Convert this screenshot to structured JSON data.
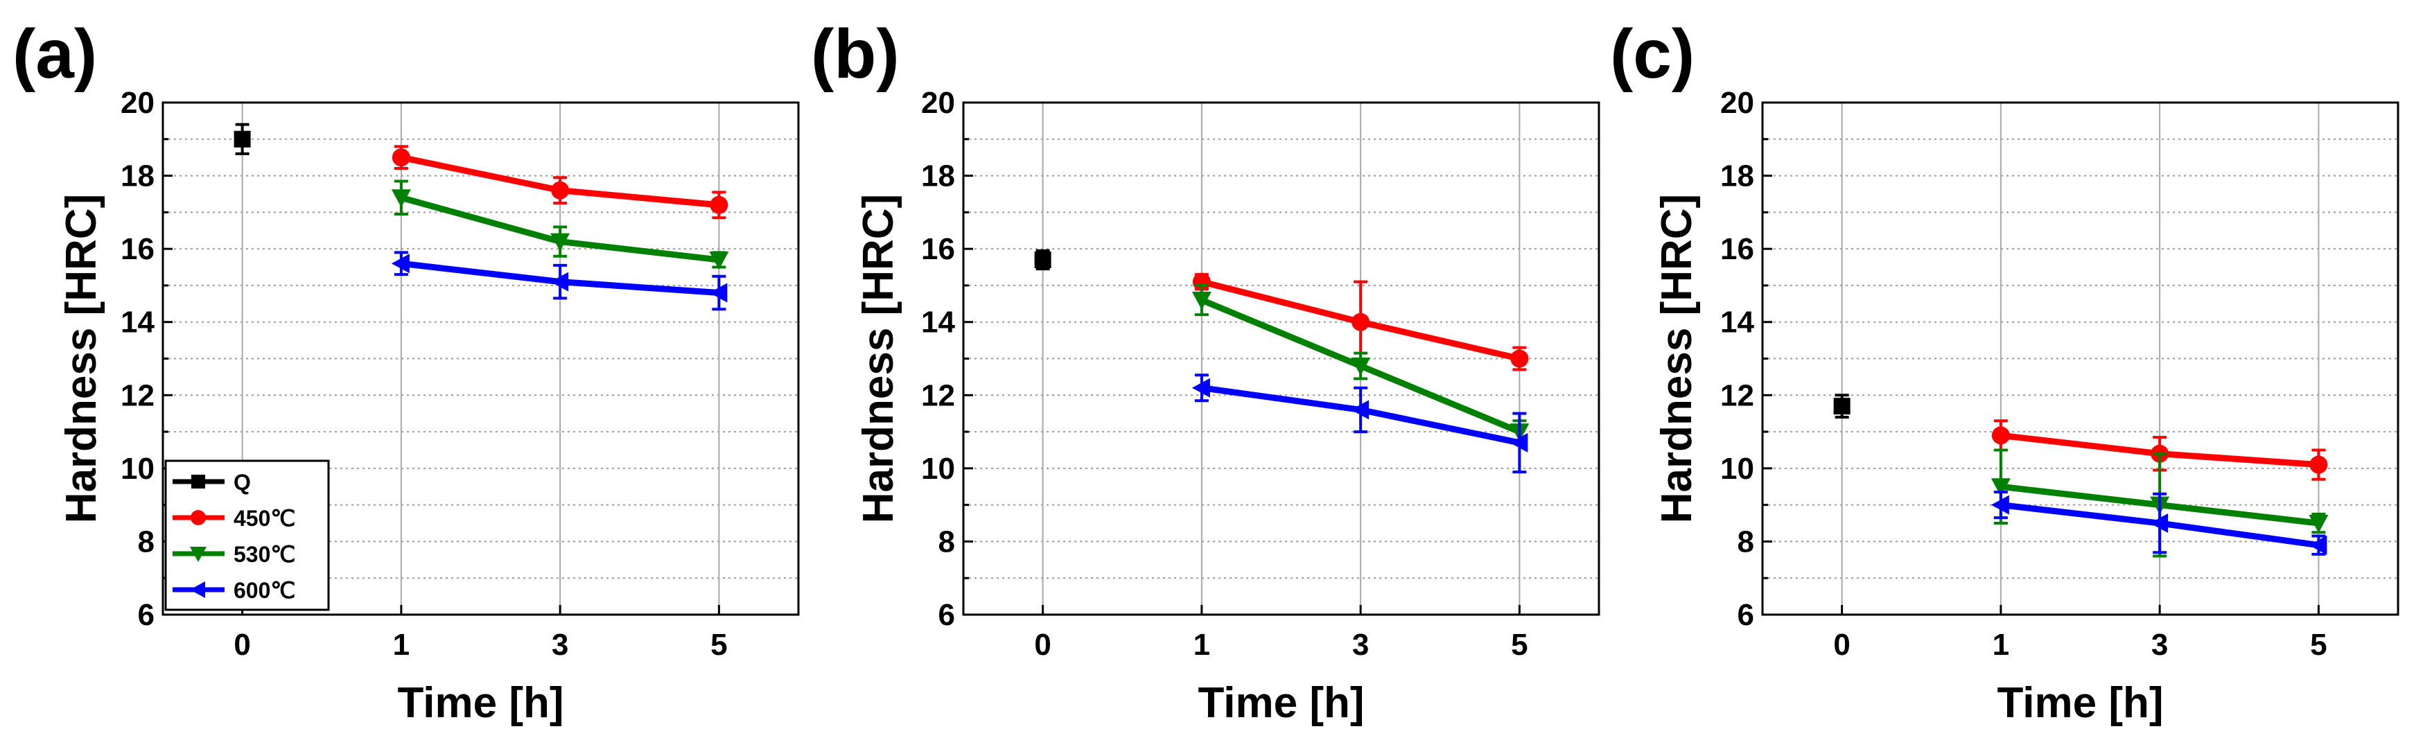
{
  "chart_data": [
    {
      "type": "line",
      "panel": "(a)",
      "xlabel": "Time [h]",
      "ylabel": "Hardness [HRC]",
      "ylim": [
        6,
        20
      ],
      "yticks": [
        6,
        8,
        10,
        12,
        14,
        16,
        18,
        20
      ],
      "xticks": [
        "0",
        "1",
        "3",
        "5"
      ],
      "legend": {
        "position": "bottom-left",
        "entries": [
          "Q",
          "450℃",
          "530℃",
          "600℃"
        ]
      },
      "series": [
        {
          "name": "Q",
          "color": "#000000",
          "marker": "square",
          "x": [
            "0"
          ],
          "values": [
            19.0
          ],
          "errors": [
            0.4
          ]
        },
        {
          "name": "450℃",
          "color": "#ff0000",
          "marker": "circle",
          "x": [
            "1",
            "3",
            "5"
          ],
          "values": [
            18.5,
            17.6,
            17.2
          ],
          "errors": [
            0.3,
            0.35,
            0.35
          ]
        },
        {
          "name": "530℃",
          "color": "#008000",
          "marker": "triangle-down",
          "x": [
            "1",
            "3",
            "5"
          ],
          "values": [
            17.4,
            16.2,
            15.7
          ],
          "errors": [
            0.45,
            0.4,
            0.2
          ]
        },
        {
          "name": "600℃",
          "color": "#0000ff",
          "marker": "triangle-left",
          "x": [
            "1",
            "3",
            "5"
          ],
          "values": [
            15.6,
            15.1,
            14.8
          ],
          "errors": [
            0.3,
            0.45,
            0.45
          ]
        }
      ]
    },
    {
      "type": "line",
      "panel": "(b)",
      "xlabel": "Time [h]",
      "ylabel": "Hardness [HRC]",
      "ylim": [
        6,
        20
      ],
      "yticks": [
        6,
        8,
        10,
        12,
        14,
        16,
        18,
        20
      ],
      "xticks": [
        "0",
        "1",
        "3",
        "5"
      ],
      "series": [
        {
          "name": "Q",
          "color": "#000000",
          "marker": "square",
          "x": [
            "0"
          ],
          "values": [
            15.7
          ],
          "errors": [
            0.25
          ]
        },
        {
          "name": "450℃",
          "color": "#ff0000",
          "marker": "circle",
          "x": [
            "1",
            "3",
            "5"
          ],
          "values": [
            15.1,
            14.0,
            13.0
          ],
          "errors": [
            0.2,
            1.1,
            0.3
          ]
        },
        {
          "name": "530℃",
          "color": "#008000",
          "marker": "triangle-down",
          "x": [
            "1",
            "3",
            "5"
          ],
          "values": [
            14.6,
            12.8,
            11.0
          ],
          "errors": [
            0.4,
            0.35,
            0.3
          ]
        },
        {
          "name": "600℃",
          "color": "#0000ff",
          "marker": "triangle-left",
          "x": [
            "1",
            "3",
            "5"
          ],
          "values": [
            12.2,
            11.6,
            10.7
          ],
          "errors": [
            0.35,
            0.6,
            0.8
          ]
        }
      ]
    },
    {
      "type": "line",
      "panel": "(c)",
      "xlabel": "Time [h]",
      "ylabel": "Hardness [HRC]",
      "ylim": [
        6,
        20
      ],
      "yticks": [
        6,
        8,
        10,
        12,
        14,
        16,
        18,
        20
      ],
      "xticks": [
        "0",
        "1",
        "3",
        "5"
      ],
      "series": [
        {
          "name": "Q",
          "color": "#000000",
          "marker": "square",
          "x": [
            "0"
          ],
          "values": [
            11.7
          ],
          "errors": [
            0.3
          ]
        },
        {
          "name": "450℃",
          "color": "#ff0000",
          "marker": "circle",
          "x": [
            "1",
            "3",
            "5"
          ],
          "values": [
            10.9,
            10.4,
            10.1
          ],
          "errors": [
            0.4,
            0.45,
            0.4
          ]
        },
        {
          "name": "530℃",
          "color": "#008000",
          "marker": "triangle-down",
          "x": [
            "1",
            "3",
            "5"
          ],
          "values": [
            9.5,
            9.0,
            8.5
          ],
          "errors": [
            1.0,
            1.4,
            0.25
          ]
        },
        {
          "name": "600℃",
          "color": "#0000ff",
          "marker": "triangle-left",
          "x": [
            "1",
            "3",
            "5"
          ],
          "values": [
            9.0,
            8.5,
            7.9
          ],
          "errors": [
            0.35,
            0.8,
            0.25
          ]
        }
      ]
    }
  ]
}
